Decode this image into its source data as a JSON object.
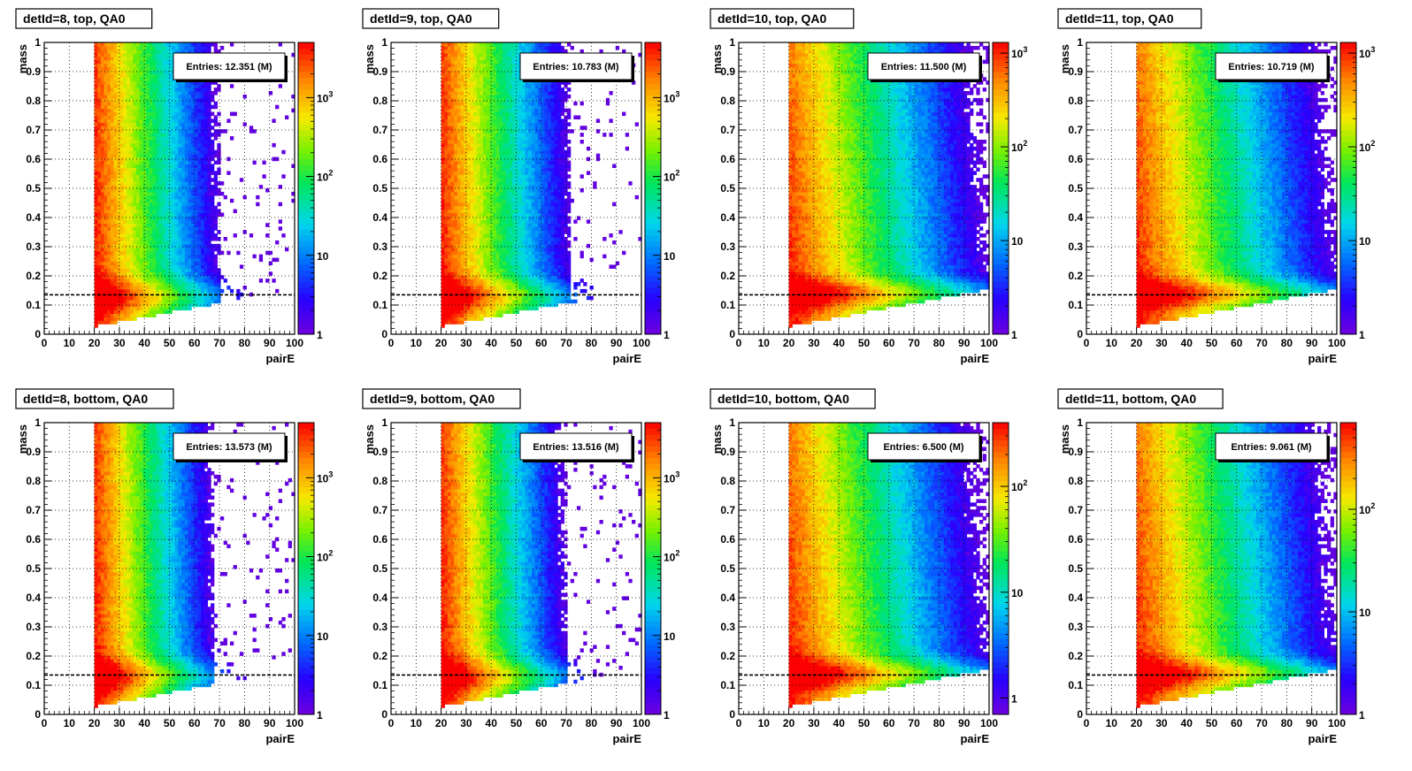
{
  "chart_data": [
    {
      "type": "heatmap",
      "title": "detId=8, top, QA0",
      "xlabel": "pairE",
      "ylabel": "mass",
      "xlim": [
        0,
        100
      ],
      "ylim": [
        0,
        1
      ],
      "xticks": [
        "0",
        "10",
        "20",
        "30",
        "40",
        "50",
        "60",
        "70",
        "80",
        "90",
        "100"
      ],
      "yticks": [
        "0",
        "0.1",
        "0.2",
        "0.3",
        "0.4",
        "0.5",
        "0.6",
        "0.7",
        "0.8",
        "0.9",
        "1"
      ],
      "stats": "Entries: 12.351 (M)",
      "colorbar": {
        "scale": "log",
        "range": [
          1,
          5000
        ],
        "ticks": [
          "1",
          "10",
          "10",
          "10"
        ],
        "tick_exponents": [
          "",
          "",
          "2",
          "3"
        ]
      },
      "reference_line_y": 0.135,
      "grid": true,
      "reach": 70
    },
    {
      "type": "heatmap",
      "title": "detId=9, top, QA0",
      "xlabel": "pairE",
      "ylabel": "mass",
      "xlim": [
        0,
        100
      ],
      "ylim": [
        0,
        1
      ],
      "xticks": [
        "0",
        "10",
        "20",
        "30",
        "40",
        "50",
        "60",
        "70",
        "80",
        "90",
        "100"
      ],
      "yticks": [
        "0",
        "0.1",
        "0.2",
        "0.3",
        "0.4",
        "0.5",
        "0.6",
        "0.7",
        "0.8",
        "0.9",
        "1"
      ],
      "stats": "Entries: 10.783 (M)",
      "colorbar": {
        "scale": "log",
        "range": [
          1,
          5000
        ],
        "ticks": [
          "1",
          "10",
          "10",
          "10"
        ],
        "tick_exponents": [
          "",
          "",
          "2",
          "3"
        ]
      },
      "reference_line_y": 0.135,
      "grid": true,
      "reach": 72
    },
    {
      "type": "heatmap",
      "title": "detId=10, top, QA0",
      "xlabel": "pairE",
      "ylabel": "mass",
      "xlim": [
        0,
        100
      ],
      "ylim": [
        0,
        1
      ],
      "xticks": [
        "0",
        "10",
        "20",
        "30",
        "40",
        "50",
        "60",
        "70",
        "80",
        "90",
        "100"
      ],
      "yticks": [
        "0",
        "0.1",
        "0.2",
        "0.3",
        "0.4",
        "0.5",
        "0.6",
        "0.7",
        "0.8",
        "0.9",
        "1"
      ],
      "stats": "Entries: 11.500 (M)",
      "colorbar": {
        "scale": "log",
        "range": [
          1,
          1300
        ],
        "ticks": [
          "1",
          "10",
          "10",
          "10"
        ],
        "tick_exponents": [
          "",
          "",
          "2",
          "3"
        ]
      },
      "reference_line_y": 0.135,
      "grid": true,
      "reach": 100
    },
    {
      "type": "heatmap",
      "title": "detId=11, top, QA0",
      "xlabel": "pairE",
      "ylabel": "mass",
      "xlim": [
        0,
        100
      ],
      "ylim": [
        0,
        1
      ],
      "xticks": [
        "0",
        "10",
        "20",
        "30",
        "40",
        "50",
        "60",
        "70",
        "80",
        "90",
        "100"
      ],
      "yticks": [
        "0",
        "0.1",
        "0.2",
        "0.3",
        "0.4",
        "0.5",
        "0.6",
        "0.7",
        "0.8",
        "0.9",
        "1"
      ],
      "stats": "Entries: 10.719 (M)",
      "colorbar": {
        "scale": "log",
        "range": [
          1,
          1300
        ],
        "ticks": [
          "1",
          "10",
          "10",
          "10"
        ],
        "tick_exponents": [
          "",
          "",
          "2",
          "3"
        ]
      },
      "reference_line_y": 0.135,
      "grid": true,
      "reach": 100
    },
    {
      "type": "heatmap",
      "title": "detId=8, bottom, QA0",
      "xlabel": "pairE",
      "ylabel": "mass",
      "xlim": [
        0,
        100
      ],
      "ylim": [
        0,
        1
      ],
      "xticks": [
        "0",
        "10",
        "20",
        "30",
        "40",
        "50",
        "60",
        "70",
        "80",
        "90",
        "100"
      ],
      "yticks": [
        "0",
        "0.1",
        "0.2",
        "0.3",
        "0.4",
        "0.5",
        "0.6",
        "0.7",
        "0.8",
        "0.9",
        "1"
      ],
      "stats": "Entries: 13.573 (M)",
      "colorbar": {
        "scale": "log",
        "range": [
          1,
          5000
        ],
        "ticks": [
          "1",
          "10",
          "10",
          "10"
        ],
        "tick_exponents": [
          "",
          "",
          "2",
          "3"
        ]
      },
      "reference_line_y": 0.135,
      "grid": true,
      "reach": 68
    },
    {
      "type": "heatmap",
      "title": "detId=9, bottom, QA0",
      "xlabel": "pairE",
      "ylabel": "mass",
      "xlim": [
        0,
        100
      ],
      "ylim": [
        0,
        1
      ],
      "xticks": [
        "0",
        "10",
        "20",
        "30",
        "40",
        "50",
        "60",
        "70",
        "80",
        "90",
        "100"
      ],
      "yticks": [
        "0",
        "0.1",
        "0.2",
        "0.3",
        "0.4",
        "0.5",
        "0.6",
        "0.7",
        "0.8",
        "0.9",
        "1"
      ],
      "stats": "Entries: 13.516 (M)",
      "colorbar": {
        "scale": "log",
        "range": [
          1,
          5000
        ],
        "ticks": [
          "1",
          "10",
          "10",
          "10"
        ],
        "tick_exponents": [
          "",
          "",
          "2",
          "3"
        ]
      },
      "reference_line_y": 0.135,
      "grid": true,
      "reach": 70
    },
    {
      "type": "heatmap",
      "title": "detId=10, bottom, QA0",
      "xlabel": "pairE",
      "ylabel": "mass",
      "xlim": [
        0,
        100
      ],
      "ylim": [
        0,
        1
      ],
      "xticks": [
        "0",
        "10",
        "20",
        "30",
        "40",
        "50",
        "60",
        "70",
        "80",
        "90",
        "100"
      ],
      "yticks": [
        "0",
        "0.1",
        "0.2",
        "0.3",
        "0.4",
        "0.5",
        "0.6",
        "0.7",
        "0.8",
        "0.9",
        "1"
      ],
      "stats": "Entries: 6.500 (M)",
      "colorbar": {
        "scale": "log",
        "range": [
          0.7,
          400
        ],
        "ticks": [
          "1",
          "10",
          "10"
        ],
        "tick_exponents": [
          "",
          "",
          "2"
        ]
      },
      "reference_line_y": 0.135,
      "grid": true,
      "reach": 100
    },
    {
      "type": "heatmap",
      "title": "detId=11, bottom, QA0",
      "xlabel": "pairE",
      "ylabel": "mass",
      "xlim": [
        0,
        100
      ],
      "ylim": [
        0,
        1
      ],
      "xticks": [
        "0",
        "10",
        "20",
        "30",
        "40",
        "50",
        "60",
        "70",
        "80",
        "90",
        "100"
      ],
      "yticks": [
        "0",
        "0.1",
        "0.2",
        "0.3",
        "0.4",
        "0.5",
        "0.6",
        "0.7",
        "0.8",
        "0.9",
        "1"
      ],
      "stats": "Entries: 9.061 (M)",
      "colorbar": {
        "scale": "log",
        "range": [
          1,
          700
        ],
        "ticks": [
          "1",
          "10",
          "10"
        ],
        "tick_exponents": [
          "",
          "",
          "2"
        ]
      },
      "reference_line_y": 0.135,
      "grid": true,
      "reach": 100
    }
  ]
}
